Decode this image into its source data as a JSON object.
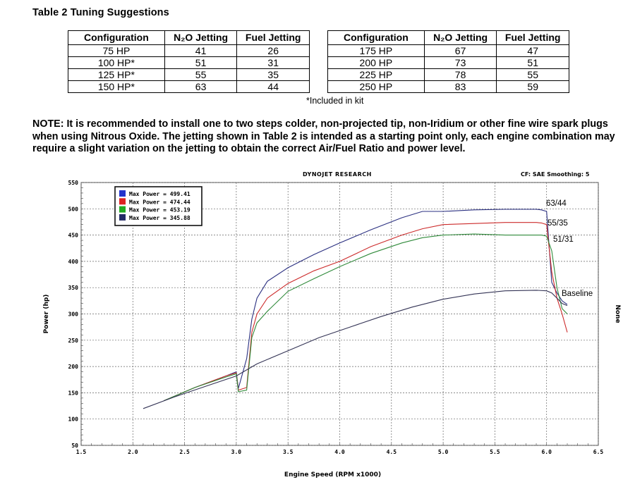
{
  "table": {
    "title": "Table 2  Tuning Suggestions",
    "headers": [
      "Configuration",
      "N₂O Jetting",
      "Fuel Jetting"
    ],
    "left_rows": [
      [
        "75 HP",
        "41",
        "26"
      ],
      [
        "100 HP*",
        "51",
        "31"
      ],
      [
        "125 HP*",
        "55",
        "35"
      ],
      [
        "150 HP*",
        "63",
        "44"
      ]
    ],
    "right_rows": [
      [
        "175 HP",
        "67",
        "47"
      ],
      [
        "200 HP",
        "73",
        "51"
      ],
      [
        "225 HP",
        "78",
        "55"
      ],
      [
        "250 HP",
        "83",
        "59"
      ]
    ],
    "footnote": "*Included in kit"
  },
  "note": "NOTE:  It is recommended to install one to two steps colder, non-projected tip, non-Iridium or other fine wire spark plugs when using Nitrous Oxide. The jetting shown in Table 2 is intended as a starting point only, each engine combination may require a slight variation on the jetting to obtain the correct Air/Fuel Ratio and power level.",
  "chart_header": {
    "title": "DYNOJET RESEARCH",
    "cf": "CF: SAE  Smoothing: 5"
  },
  "chart_data": {
    "type": "line",
    "xlabel": "Engine Speed (RPM x1000)",
    "ylabel": "Power (hp)",
    "right_label": "None",
    "xlim": [
      1.5,
      6.5
    ],
    "ylim": [
      50,
      550
    ],
    "xticks": [
      "1.5",
      "2.0",
      "2.5",
      "3.0",
      "3.5",
      "4.0",
      "4.5",
      "5.0",
      "5.5",
      "6.0",
      "6.5"
    ],
    "yticks": [
      "50",
      "100",
      "150",
      "200",
      "250",
      "300",
      "350",
      "400",
      "450",
      "500",
      "550"
    ],
    "legend": [
      {
        "text": "Max Power = 499.41",
        "color": "#2233cc"
      },
      {
        "text": "Max Power = 474.44",
        "color": "#dd2222"
      },
      {
        "text": "Max Power = 453.19",
        "color": "#22aa22"
      },
      {
        "text": "Max Power = 345.88",
        "color": "#222a66"
      }
    ],
    "series": [
      {
        "name": "63/44",
        "color": "#2a2f80",
        "x": [
          2.3,
          2.6,
          2.9,
          3.0,
          3.02,
          3.1,
          3.15,
          3.2,
          3.3,
          3.5,
          3.75,
          4.0,
          4.3,
          4.6,
          4.8,
          5.0,
          5.3,
          5.6,
          5.9,
          5.95,
          6.0,
          6.05,
          6.1,
          6.15,
          6.2
        ],
        "y": [
          135,
          160,
          182,
          190,
          158,
          215,
          290,
          330,
          362,
          388,
          413,
          435,
          460,
          483,
          495,
          495,
          498,
          499,
          499,
          498,
          495,
          360,
          340,
          325,
          318
        ]
      },
      {
        "name": "55/35",
        "color": "#cc2a2a",
        "x": [
          2.3,
          2.6,
          2.9,
          3.0,
          3.02,
          3.1,
          3.15,
          3.2,
          3.3,
          3.5,
          3.75,
          4.0,
          4.3,
          4.6,
          4.8,
          5.0,
          5.3,
          5.6,
          5.9,
          5.95,
          6.0,
          6.05,
          6.1,
          6.15,
          6.2
        ],
        "y": [
          135,
          160,
          182,
          188,
          155,
          160,
          265,
          300,
          330,
          358,
          382,
          400,
          428,
          450,
          462,
          470,
          472,
          474,
          474,
          473,
          470,
          380,
          330,
          300,
          265
        ]
      },
      {
        "name": "51/31",
        "color": "#2f8a3a",
        "x": [
          2.3,
          2.6,
          2.9,
          3.0,
          3.02,
          3.1,
          3.15,
          3.2,
          3.3,
          3.5,
          3.75,
          4.0,
          4.3,
          4.6,
          4.8,
          5.0,
          5.3,
          5.6,
          5.9,
          5.95,
          6.0,
          6.05,
          6.1,
          6.15,
          6.2
        ],
        "y": [
          135,
          160,
          180,
          186,
          152,
          155,
          255,
          283,
          305,
          343,
          367,
          390,
          415,
          435,
          445,
          450,
          452,
          450,
          450,
          450,
          448,
          420,
          350,
          310,
          300
        ]
      },
      {
        "name": "Baseline",
        "color": "#333355",
        "x": [
          2.1,
          2.4,
          2.7,
          3.0,
          3.2,
          3.5,
          3.8,
          4.1,
          4.4,
          4.7,
          5.0,
          5.3,
          5.6,
          5.9,
          6.0,
          6.05,
          6.1,
          6.15,
          6.2
        ],
        "y": [
          120,
          142,
          162,
          182,
          205,
          230,
          255,
          275,
          295,
          313,
          328,
          338,
          344,
          345,
          344,
          340,
          330,
          320,
          316
        ]
      }
    ],
    "labels": [
      "63/44",
      "55/35",
      "51/31",
      "Baseline"
    ]
  }
}
